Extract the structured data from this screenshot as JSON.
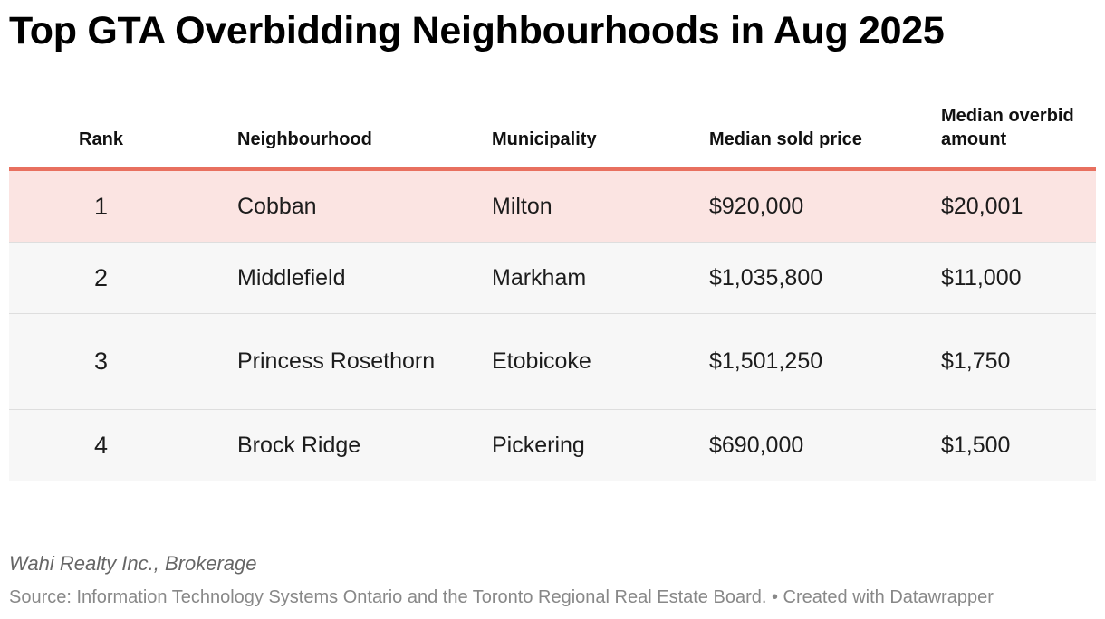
{
  "title": "Top GTA Overbidding Neighbourhoods in Aug 2025",
  "byline": "Wahi Realty Inc., Brokerage",
  "source": "Source: Information Technology Systems Ontario and the Toronto Regional Real Estate Board. • Created with Datawrapper",
  "colors": {
    "accent": "#e8705f",
    "highlight_row": "#fbe4e2",
    "alt_row": "#f7f7f7",
    "text": "#181818",
    "muted": "#888888"
  },
  "chart_data": {
    "type": "table",
    "title": "Top GTA Overbidding Neighbourhoods in Aug 2025",
    "columns": [
      "Rank",
      "Neighbourhood",
      "Municipality",
      "Median sold price",
      "Median overbid amount"
    ],
    "rows": [
      [
        "1",
        "Cobban",
        "Milton",
        "$920,000",
        "$20,001"
      ],
      [
        "2",
        "Middlefield",
        "Markham",
        "$1,035,800",
        "$11,000"
      ],
      [
        "3",
        "Princess Rosethorn",
        "Etobicoke",
        "$1,501,250",
        "$1,750"
      ],
      [
        "4",
        "Brock Ridge",
        "Pickering",
        "$690,000",
        "$1,500"
      ]
    ],
    "highlighted_row": 0
  }
}
